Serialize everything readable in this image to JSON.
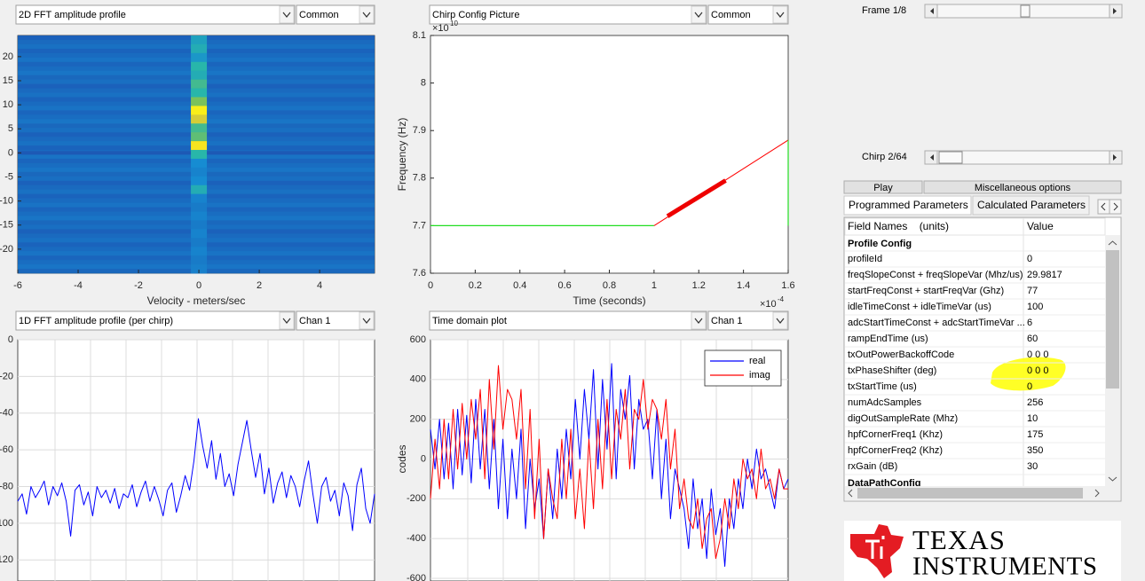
{
  "panels": [
    {
      "dropdowns": [
        "2D FFT amplitude profile",
        "Common"
      ]
    },
    {
      "dropdowns": [
        "Chirp Config Picture",
        "Common"
      ]
    },
    {
      "dropdowns": [
        "1D FFT amplitude profile (per chirp)",
        "Chan 1"
      ]
    },
    {
      "dropdowns": [
        "Time domain plot",
        "Chan 1"
      ]
    }
  ],
  "chart_data": [
    {
      "type": "heatmap",
      "xlabel": "Velocity - meters/sec",
      "xlim": [
        -6,
        5.82
      ],
      "xticks": [
        -6,
        -4,
        -2,
        0,
        2,
        4
      ],
      "ylim": [
        -25,
        24.4
      ],
      "yticks": [
        -20,
        -15,
        -10,
        -5,
        0,
        5,
        10,
        15,
        20
      ],
      "column": {
        "x": 0,
        "values": [
          0.45,
          0.5,
          0.4,
          0.55,
          0.5,
          0.6,
          0.55,
          0.7,
          0.97,
          0.85,
          0.6,
          0.65,
          0.95,
          0.55,
          0.35,
          0.3,
          0.35,
          0.5,
          0.3,
          0.25,
          0.3,
          0.25,
          0.3,
          0.25,
          0.3,
          0.25,
          0.28
        ]
      }
    },
    {
      "type": "line",
      "xlabel": "Time (seconds)",
      "ylabel": "Frequency (Hz)",
      "x_exponent": {
        "base": "×10",
        "power": "-4"
      },
      "y_exponent": {
        "base": "×10",
        "power": "10"
      },
      "xlim": [
        0,
        1.6
      ],
      "xticks": [
        0,
        0.2,
        0.4,
        0.6,
        0.8,
        1,
        1.2,
        1.4,
        1.6
      ],
      "ylim": [
        7.6,
        8.1
      ],
      "yticks": [
        7.6,
        7.7,
        7.8,
        7.9,
        8,
        8.1
      ],
      "series": [
        {
          "color": "#22dd22",
          "linewidth": 1.2,
          "x": [
            0,
            1
          ],
          "values": [
            7.7,
            7.7
          ]
        },
        {
          "color": "#ff0000",
          "linewidth": 1,
          "x": [
            1,
            1.6
          ],
          "values": [
            7.7,
            7.88
          ]
        },
        {
          "color": "#22dd22",
          "linewidth": 1.2,
          "x": [
            1.6,
            1.6
          ],
          "values": [
            7.88,
            7.7
          ]
        },
        {
          "color": "#ee0000",
          "linewidth": 5,
          "x": [
            1.06,
            1.32
          ],
          "values": [
            7.72,
            7.795
          ]
        }
      ]
    },
    {
      "type": "line",
      "ylim": [
        -130,
        0
      ],
      "yticks": [
        0,
        -20,
        -40,
        -60,
        -80,
        -100,
        -120
      ],
      "grid": true,
      "series": [
        {
          "color": "#0000ff",
          "linewidth": 1,
          "values": [
            -88,
            -84,
            -95,
            -80,
            -86,
            -82,
            -77,
            -90,
            -80,
            -85,
            -78,
            -88,
            -107,
            -82,
            -79,
            -90,
            -83,
            -96,
            -80,
            -86,
            -82,
            -89,
            -81,
            -92,
            -84,
            -86,
            -79,
            -91,
            -83,
            -77,
            -88,
            -80,
            -87,
            -96,
            -82,
            -78,
            -94,
            -85,
            -74,
            -82,
            -66,
            -43,
            -58,
            -70,
            -55,
            -76,
            -62,
            -80,
            -73,
            -85,
            -68,
            -56,
            -44,
            -60,
            -75,
            -62,
            -84,
            -70,
            -89,
            -78,
            -72,
            -86,
            -74,
            -80,
            -91,
            -77,
            -66,
            -84,
            -100,
            -80,
            -75,
            -88,
            -82,
            -96,
            -78,
            -85,
            -104,
            -79,
            -70,
            -92,
            -100,
            -84
          ]
        }
      ]
    },
    {
      "type": "line",
      "ylabel": "codes",
      "ylim": [
        -600,
        600
      ],
      "yticks": [
        -600,
        -400,
        -200,
        0,
        200,
        400,
        600
      ],
      "grid": true,
      "legend": "upper right",
      "series": [
        {
          "name": "real",
          "color": "#0000ff",
          "linewidth": 1,
          "values": [
            150,
            -50,
            200,
            -100,
            180,
            -150,
            250,
            -80,
            220,
            -120,
            300,
            -50,
            250,
            -150,
            200,
            -250,
            100,
            -300,
            50,
            -200,
            150,
            -350,
            0,
            -250,
            -100,
            -400,
            -50,
            -300,
            50,
            -200,
            150,
            -100,
            300,
            0,
            350,
            100,
            450,
            -50,
            400,
            50,
            480,
            -100,
            350,
            200,
            420,
            -50,
            300,
            150,
            200,
            -100,
            250,
            -200,
            100,
            -300,
            -50,
            -150,
            -250,
            -450,
            -100,
            -350,
            -200,
            -500,
            -150,
            -380,
            -250,
            -540,
            -200,
            -350,
            -100,
            -250,
            0,
            -150,
            50,
            -100,
            -50,
            -150,
            -250,
            -50,
            -150,
            -100
          ]
        },
        {
          "name": "imag",
          "color": "#ff0000",
          "linewidth": 1,
          "values": [
            -200,
            100,
            -150,
            200,
            -100,
            250,
            -50,
            280,
            0,
            300,
            100,
            350,
            -100,
            400,
            50,
            470,
            150,
            350,
            300,
            100,
            350,
            -150,
            250,
            -300,
            100,
            -400,
            -50,
            -200,
            -300,
            100,
            -200,
            150,
            -300,
            -50,
            -350,
            100,
            -250,
            200,
            -150,
            300,
            -100,
            250,
            100,
            350,
            -50,
            250,
            200,
            400,
            150,
            300,
            250,
            100,
            300,
            -50,
            150,
            -250,
            -100,
            -300,
            -350,
            -200,
            -450,
            -300,
            -250,
            -500,
            -400,
            -200,
            -350,
            -100,
            -250,
            0,
            -100,
            -50,
            -200,
            50,
            -150,
            -100,
            -200,
            -50,
            -150,
            -150
          ]
        }
      ]
    }
  ],
  "frame_slider": {
    "label": "Frame 1/8"
  },
  "chirp_slider": {
    "label": "Chirp 2/64"
  },
  "buttons": [
    "Play",
    "Miscellaneous options"
  ],
  "tabs": [
    "Programmed Parameters",
    "Calculated Parameters"
  ],
  "table": {
    "header": [
      "Field Names    (units)",
      "Value"
    ],
    "sections": [
      {
        "title": "Profile Config",
        "rows": [
          [
            "profileId",
            "0"
          ],
          [
            "freqSlopeConst + freqSlopeVar (Mhz/us)",
            "29.9817"
          ],
          [
            "startFreqConst + startFreqVar (Ghz)",
            "77"
          ],
          [
            "idleTimeConst + idleTimeVar (us)",
            "100"
          ],
          [
            "adcStartTimeConst + adcStartTimeVar ...",
            "6"
          ],
          [
            "rampEndTime (us)",
            "60"
          ],
          [
            "txOutPowerBackoffCode",
            "0 0 0"
          ],
          [
            "txPhaseShifter (deg)",
            "0 0 0"
          ],
          [
            "txStartTime (us)",
            "0"
          ],
          [
            "numAdcSamples",
            "256"
          ],
          [
            "digOutSampleRate (Mhz)",
            "10"
          ],
          [
            "hpfCornerFreq1 (Khz)",
            "175"
          ],
          [
            "hpfCornerFreq2 (Khz)",
            "350"
          ],
          [
            "rxGain (dB)",
            "30"
          ]
        ]
      },
      {
        "title": "DataPathConfig"
      }
    ]
  },
  "logo": {
    "line1": "TEXAS",
    "line2": "INSTRUMENTS"
  }
}
